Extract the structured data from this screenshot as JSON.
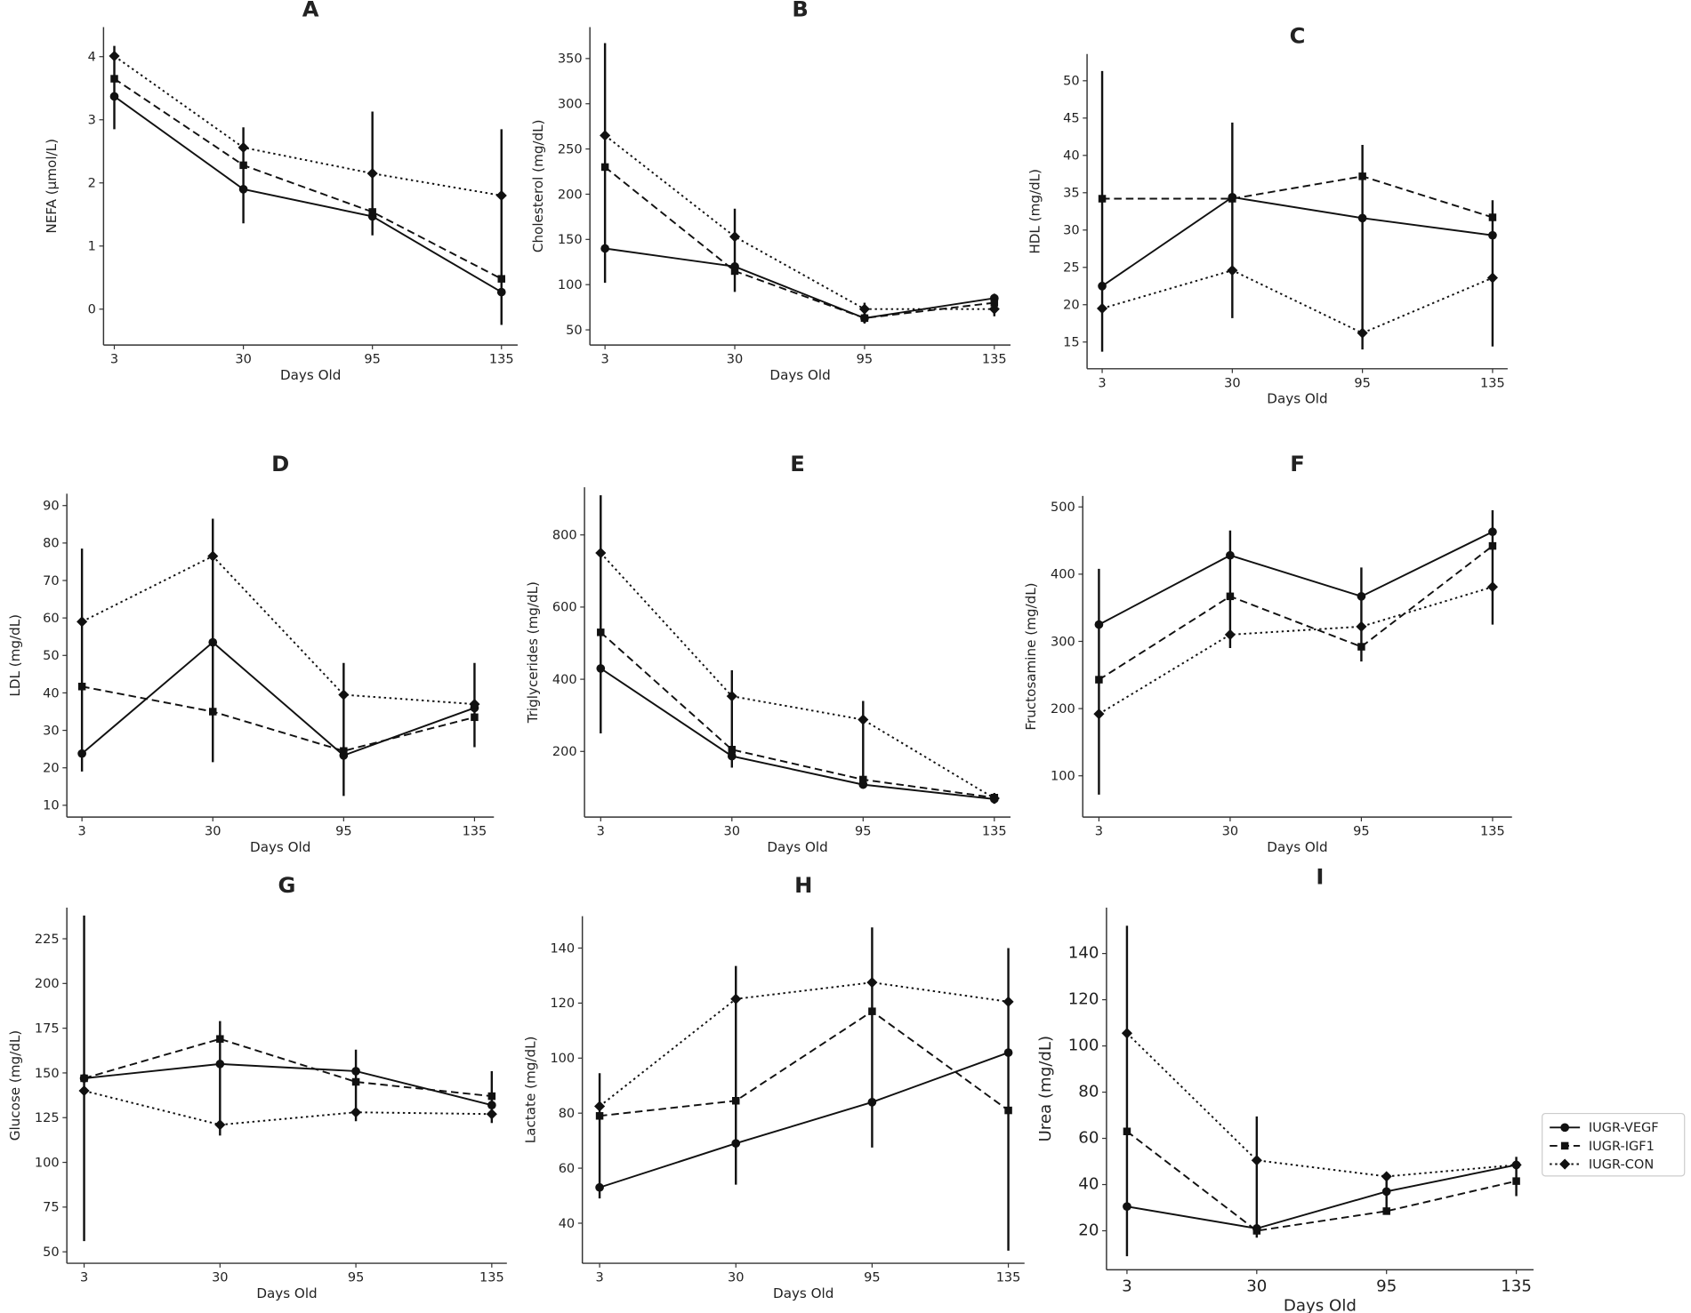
{
  "legend": [
    {
      "name": "IUGR-VEGF",
      "style": "solid",
      "marker": "circle"
    },
    {
      "name": "IUGR-IGF1",
      "style": "dashed",
      "marker": "square"
    },
    {
      "name": "IUGR-CON",
      "style": "dotted",
      "marker": "diamond"
    }
  ],
  "chart_data": [
    {
      "type": "line",
      "title": "A",
      "xlabel": "Days Old",
      "ylabel": "NEFA (µmol/L)",
      "x": [
        "3",
        "30",
        "95",
        "135"
      ],
      "yticks": [
        0,
        1,
        2,
        3,
        4
      ],
      "ylim": [
        -0.5,
        4.4
      ],
      "series": [
        {
          "name": "IUGR-VEGF",
          "values": [
            3.37,
            1.9,
            1.47,
            0.27
          ]
        },
        {
          "name": "IUGR-IGF1",
          "values": [
            3.65,
            2.28,
            1.54,
            0.48
          ]
        },
        {
          "name": "IUGR-CON",
          "values": [
            4.01,
            2.56,
            2.15,
            1.8
          ]
        }
      ],
      "errorbars": [
        [
          2.85,
          4.17
        ],
        [
          1.36,
          2.88
        ],
        [
          1.17,
          3.13
        ],
        [
          -0.25,
          2.85
        ]
      ]
    },
    {
      "type": "line",
      "title": "B",
      "xlabel": "Days Old",
      "ylabel": "Cholesterol (mg/dL)",
      "x": [
        "3",
        "30",
        "95",
        "135"
      ],
      "yticks": [
        50,
        100,
        150,
        200,
        250,
        300,
        350
      ],
      "ylim": [
        38,
        380
      ],
      "series": [
        {
          "name": "IUGR-VEGF",
          "values": [
            140,
            120,
            63,
            85
          ]
        },
        {
          "name": "IUGR-IGF1",
          "values": [
            230,
            115,
            63,
            80
          ]
        },
        {
          "name": "IUGR-CON",
          "values": [
            265,
            153,
            73,
            73
          ]
        }
      ],
      "errorbars": [
        [
          102,
          367
        ],
        [
          92,
          184
        ],
        [
          57,
          80
        ],
        [
          65,
          90
        ]
      ]
    },
    {
      "type": "line",
      "title": "C",
      "xlabel": "Days Old",
      "ylabel": "HDL (mg/dL)",
      "x": [
        "3",
        "30",
        "95",
        "135"
      ],
      "yticks": [
        15,
        20,
        25,
        30,
        35,
        40,
        45,
        50
      ],
      "ylim": [
        12,
        53
      ],
      "series": [
        {
          "name": "IUGR-VEGF",
          "values": [
            22.5,
            34.4,
            31.6,
            29.3
          ]
        },
        {
          "name": "IUGR-IGF1",
          "values": [
            34.2,
            34.2,
            37.2,
            31.7
          ]
        },
        {
          "name": "IUGR-CON",
          "values": [
            19.5,
            24.6,
            16.2,
            23.6
          ]
        }
      ],
      "errorbars": [
        [
          13.7,
          51.3
        ],
        [
          18.2,
          44.4
        ],
        [
          14,
          41.4
        ],
        [
          14.4,
          34
        ]
      ]
    },
    {
      "type": "line",
      "title": "D",
      "xlabel": "Days Old",
      "ylabel": "LDL (mg/dL)",
      "x": [
        "3",
        "30",
        "95",
        "135"
      ],
      "yticks": [
        10,
        20,
        30,
        40,
        50,
        60,
        70,
        80,
        90
      ],
      "ylim": [
        8,
        92
      ],
      "series": [
        {
          "name": "IUGR-VEGF",
          "values": [
            23.8,
            53.5,
            23.3,
            36
          ]
        },
        {
          "name": "IUGR-IGF1",
          "values": [
            41.7,
            35,
            24.5,
            33.5
          ]
        },
        {
          "name": "IUGR-CON",
          "values": [
            59,
            76.5,
            39.5,
            37
          ]
        }
      ],
      "errorbars": [
        [
          19,
          78.5
        ],
        [
          21.5,
          86.5
        ],
        [
          12.5,
          48
        ],
        [
          25.5,
          48
        ]
      ]
    },
    {
      "type": "line",
      "title": "E",
      "xlabel": "Days Old",
      "ylabel": "Triglycerides (mg/dL)",
      "x": [
        "3",
        "30",
        "95",
        "135"
      ],
      "yticks": [
        200,
        400,
        600,
        800
      ],
      "ylim": [
        30,
        920
      ],
      "series": [
        {
          "name": "IUGR-VEGF",
          "values": [
            430,
            187,
            108,
            68
          ]
        },
        {
          "name": "IUGR-IGF1",
          "values": [
            530,
            205,
            122,
            72
          ]
        },
        {
          "name": "IUGR-CON",
          "values": [
            750,
            353,
            288,
            70
          ]
        }
      ],
      "errorbars": [
        [
          250,
          910
        ],
        [
          155,
          425
        ],
        [
          100,
          340
        ],
        [
          55,
          85
        ]
      ]
    },
    {
      "type": "line",
      "title": "F",
      "xlabel": "Days Old",
      "ylabel": "Fructosamine (mg/dL)",
      "x": [
        "3",
        "30",
        "95",
        "135"
      ],
      "yticks": [
        100,
        200,
        300,
        400,
        500
      ],
      "ylim": [
        45,
        510
      ],
      "series": [
        {
          "name": "IUGR-VEGF",
          "values": [
            325,
            428,
            367,
            463
          ]
        },
        {
          "name": "IUGR-IGF1",
          "values": [
            243,
            367,
            292,
            442
          ]
        },
        {
          "name": "IUGR-CON",
          "values": [
            192,
            310,
            322,
            381
          ]
        }
      ],
      "errorbars": [
        [
          72,
          408
        ],
        [
          290,
          465
        ],
        [
          270,
          410
        ],
        [
          325,
          495
        ]
      ]
    },
    {
      "type": "line",
      "title": "G",
      "xlabel": "Days Old",
      "ylabel": "Glucose (mg/dL)",
      "x": [
        "3",
        "30",
        "95",
        "135"
      ],
      "yticks": [
        50,
        75,
        100,
        125,
        150,
        175,
        200,
        225
      ],
      "ylim": [
        46,
        240
      ],
      "series": [
        {
          "name": "IUGR-VEGF",
          "values": [
            147,
            155,
            151,
            132
          ]
        },
        {
          "name": "IUGR-IGF1",
          "values": [
            147,
            169,
            145,
            137
          ]
        },
        {
          "name": "IUGR-CON",
          "values": [
            140,
            121,
            128,
            127
          ]
        }
      ],
      "errorbars": [
        [
          56,
          238
        ],
        [
          115,
          179
        ],
        [
          123,
          163
        ],
        [
          122,
          151
        ]
      ]
    },
    {
      "type": "line",
      "title": "H",
      "xlabel": "Days Old",
      "ylabel": "Lactate (mg/dL)",
      "x": [
        "3",
        "30",
        "95",
        "135"
      ],
      "yticks": [
        40,
        60,
        80,
        100,
        120,
        140
      ],
      "ylim": [
        27,
        150
      ],
      "series": [
        {
          "name": "IUGR-VEGF",
          "values": [
            53,
            69,
            84,
            102
          ]
        },
        {
          "name": "IUGR-IGF1",
          "values": [
            79,
            84.5,
            117,
            81
          ]
        },
        {
          "name": "IUGR-CON",
          "values": [
            82.5,
            121.5,
            127.5,
            120.5
          ]
        }
      ],
      "errorbars": [
        [
          49,
          94.5
        ],
        [
          54,
          133.5
        ],
        [
          67.5,
          147.5
        ],
        [
          30,
          140
        ]
      ]
    },
    {
      "type": "line",
      "title": "I",
      "xlabel": "Days Old",
      "ylabel": "Urea (mg/dL)",
      "x": [
        "3",
        "30",
        "95",
        "135"
      ],
      "yticks": [
        20,
        40,
        60,
        80,
        100,
        120,
        140
      ],
      "ylim": [
        5,
        158
      ],
      "series": [
        {
          "name": "IUGR-VEGF",
          "values": [
            30.5,
            21,
            37,
            48.5
          ]
        },
        {
          "name": "IUGR-IGF1",
          "values": [
            63,
            20,
            28.5,
            41.5
          ]
        },
        {
          "name": "IUGR-CON",
          "values": [
            105.5,
            50.5,
            43.5,
            48.5
          ]
        }
      ],
      "errorbars": [
        [
          9,
          152
        ],
        [
          17,
          69.5
        ],
        [
          27,
          45
        ],
        [
          35,
          52
        ]
      ]
    }
  ]
}
